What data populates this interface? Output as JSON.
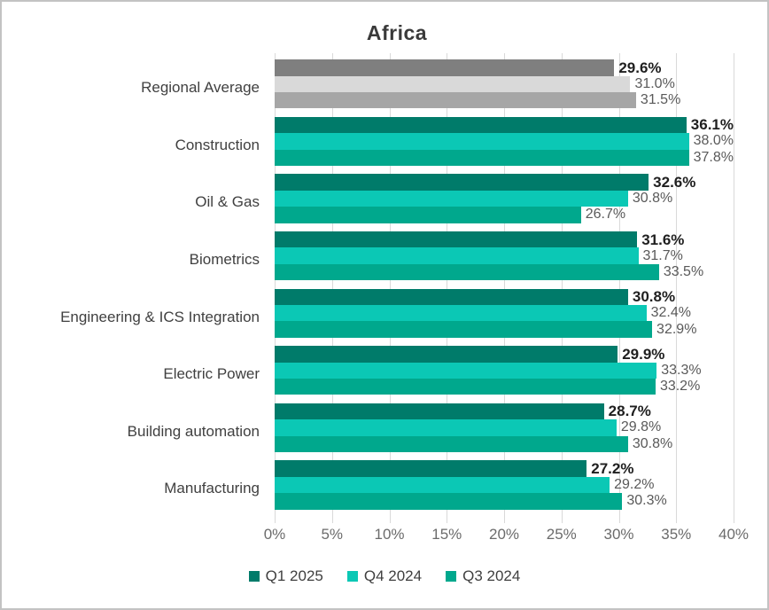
{
  "chart_data": {
    "type": "bar",
    "orientation": "horizontal",
    "title": "Africa",
    "categories": [
      "Regional Average",
      "Construction",
      "Oil & Gas",
      "Biometrics",
      "Engineering & ICS Integration",
      "Electric Power",
      "Building automation",
      "Manufacturing"
    ],
    "series": [
      {
        "name": "Q1 2025",
        "color": "#007b6a",
        "regional_color": "#7f7f7f",
        "values": [
          29.6,
          36.1,
          32.6,
          31.6,
          30.8,
          29.9,
          28.7,
          27.2
        ]
      },
      {
        "name": "Q4 2024",
        "color": "#0bc8b5",
        "regional_color": "#d9d9d9",
        "values": [
          31.0,
          38.0,
          30.8,
          31.7,
          32.4,
          33.3,
          29.8,
          29.2
        ]
      },
      {
        "name": "Q3 2024",
        "color": "#00a88d",
        "regional_color": "#a6a6a6",
        "values": [
          31.5,
          37.8,
          26.7,
          33.5,
          32.9,
          33.2,
          30.8,
          30.3
        ]
      }
    ],
    "xlim": [
      0,
      40
    ],
    "x_ticks": [
      "0%",
      "5%",
      "10%",
      "15%",
      "20%",
      "25%",
      "30%",
      "35%",
      "40%"
    ],
    "grid": true,
    "legend_position": "bottom",
    "value_label_format": "0.0%",
    "value_label_colors": {
      "primary": "#1f1f1f",
      "secondary": "#595959"
    },
    "gridline_color": "#d9d9d9"
  }
}
